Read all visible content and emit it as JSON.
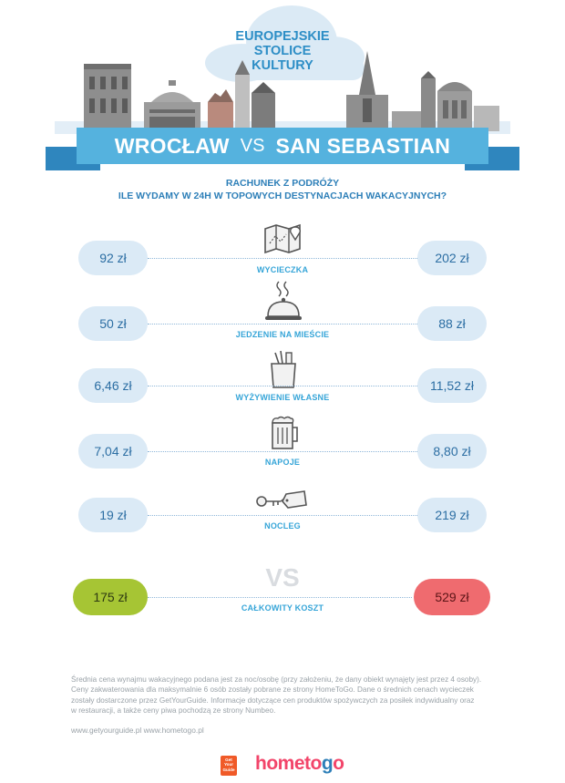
{
  "header": {
    "title_lines": [
      "EUROPEJSKIE",
      "STOLICE",
      "KULTURY"
    ],
    "city_left": "WROCŁAW",
    "vs": "VS",
    "city_right": "SAN SEBASTIAN"
  },
  "subtitle": {
    "line1": "RACHUNEK Z PODRÓŻY",
    "line2": "ILE WYDAMY W 24H W TOPOWYCH DESTYNACJACH WAKACYJNYCH?"
  },
  "rows": [
    {
      "left": "92 zł",
      "label": "WYCIECZKA",
      "right": "202 zł",
      "icon": "map-icon"
    },
    {
      "left": "50 zł",
      "label": "JEDZENIE NA MIEŚCIE",
      "right": "88 zł",
      "icon": "food-cloche-icon"
    },
    {
      "left": "6,46 zł",
      "label": "WYŻYWIENIE WŁASNE",
      "right": "11,52 zł",
      "icon": "grocery-bag-icon"
    },
    {
      "left": "7,04 zł",
      "label": "NAPOJE",
      "right": "8,80 zł",
      "icon": "beer-mug-icon"
    },
    {
      "left": "19 zł",
      "label": "NOCLEG",
      "right": "219 zł",
      "icon": "key-tag-icon"
    }
  ],
  "total": {
    "vs": "VS",
    "left": "175 zł",
    "label": "CAŁKOWITY KOSZT",
    "right": "529 zł"
  },
  "footnote": [
    "Średnia cena wynajmu wakacyjnego podana jest za noc/osobę (przy założeniu, że dany obiekt wynajęty jest przez 4 osoby).",
    "Ceny zakwaterowania dla maksymalnie 6 osób zostały pobrane ze strony HomeToGo. Dane o średnich cenach wycieczek",
    "zostały dostarczone przez GetYourGuide. Informacje dotyczące cen produktów spożywczych za posiłek indywidualny oraz",
    "w restauracji, a także ceny piwa pochodzą ze strony Numbeo."
  ],
  "links": "www.getyourguide.pl  www.hometogo.pl",
  "logos": {
    "gyg_lines": [
      "Get",
      "Your",
      "Guide"
    ],
    "htg_part1": "hometo",
    "htg_o": "g",
    "htg_part2": "o"
  },
  "colors": {
    "ribbon": "#55b2de",
    "ribbon_dark": "#2f86be",
    "pill": "#dbeaf6",
    "label": "#36a5d8",
    "total_left": "#a6c534",
    "total_right": "#ef6b6f"
  }
}
